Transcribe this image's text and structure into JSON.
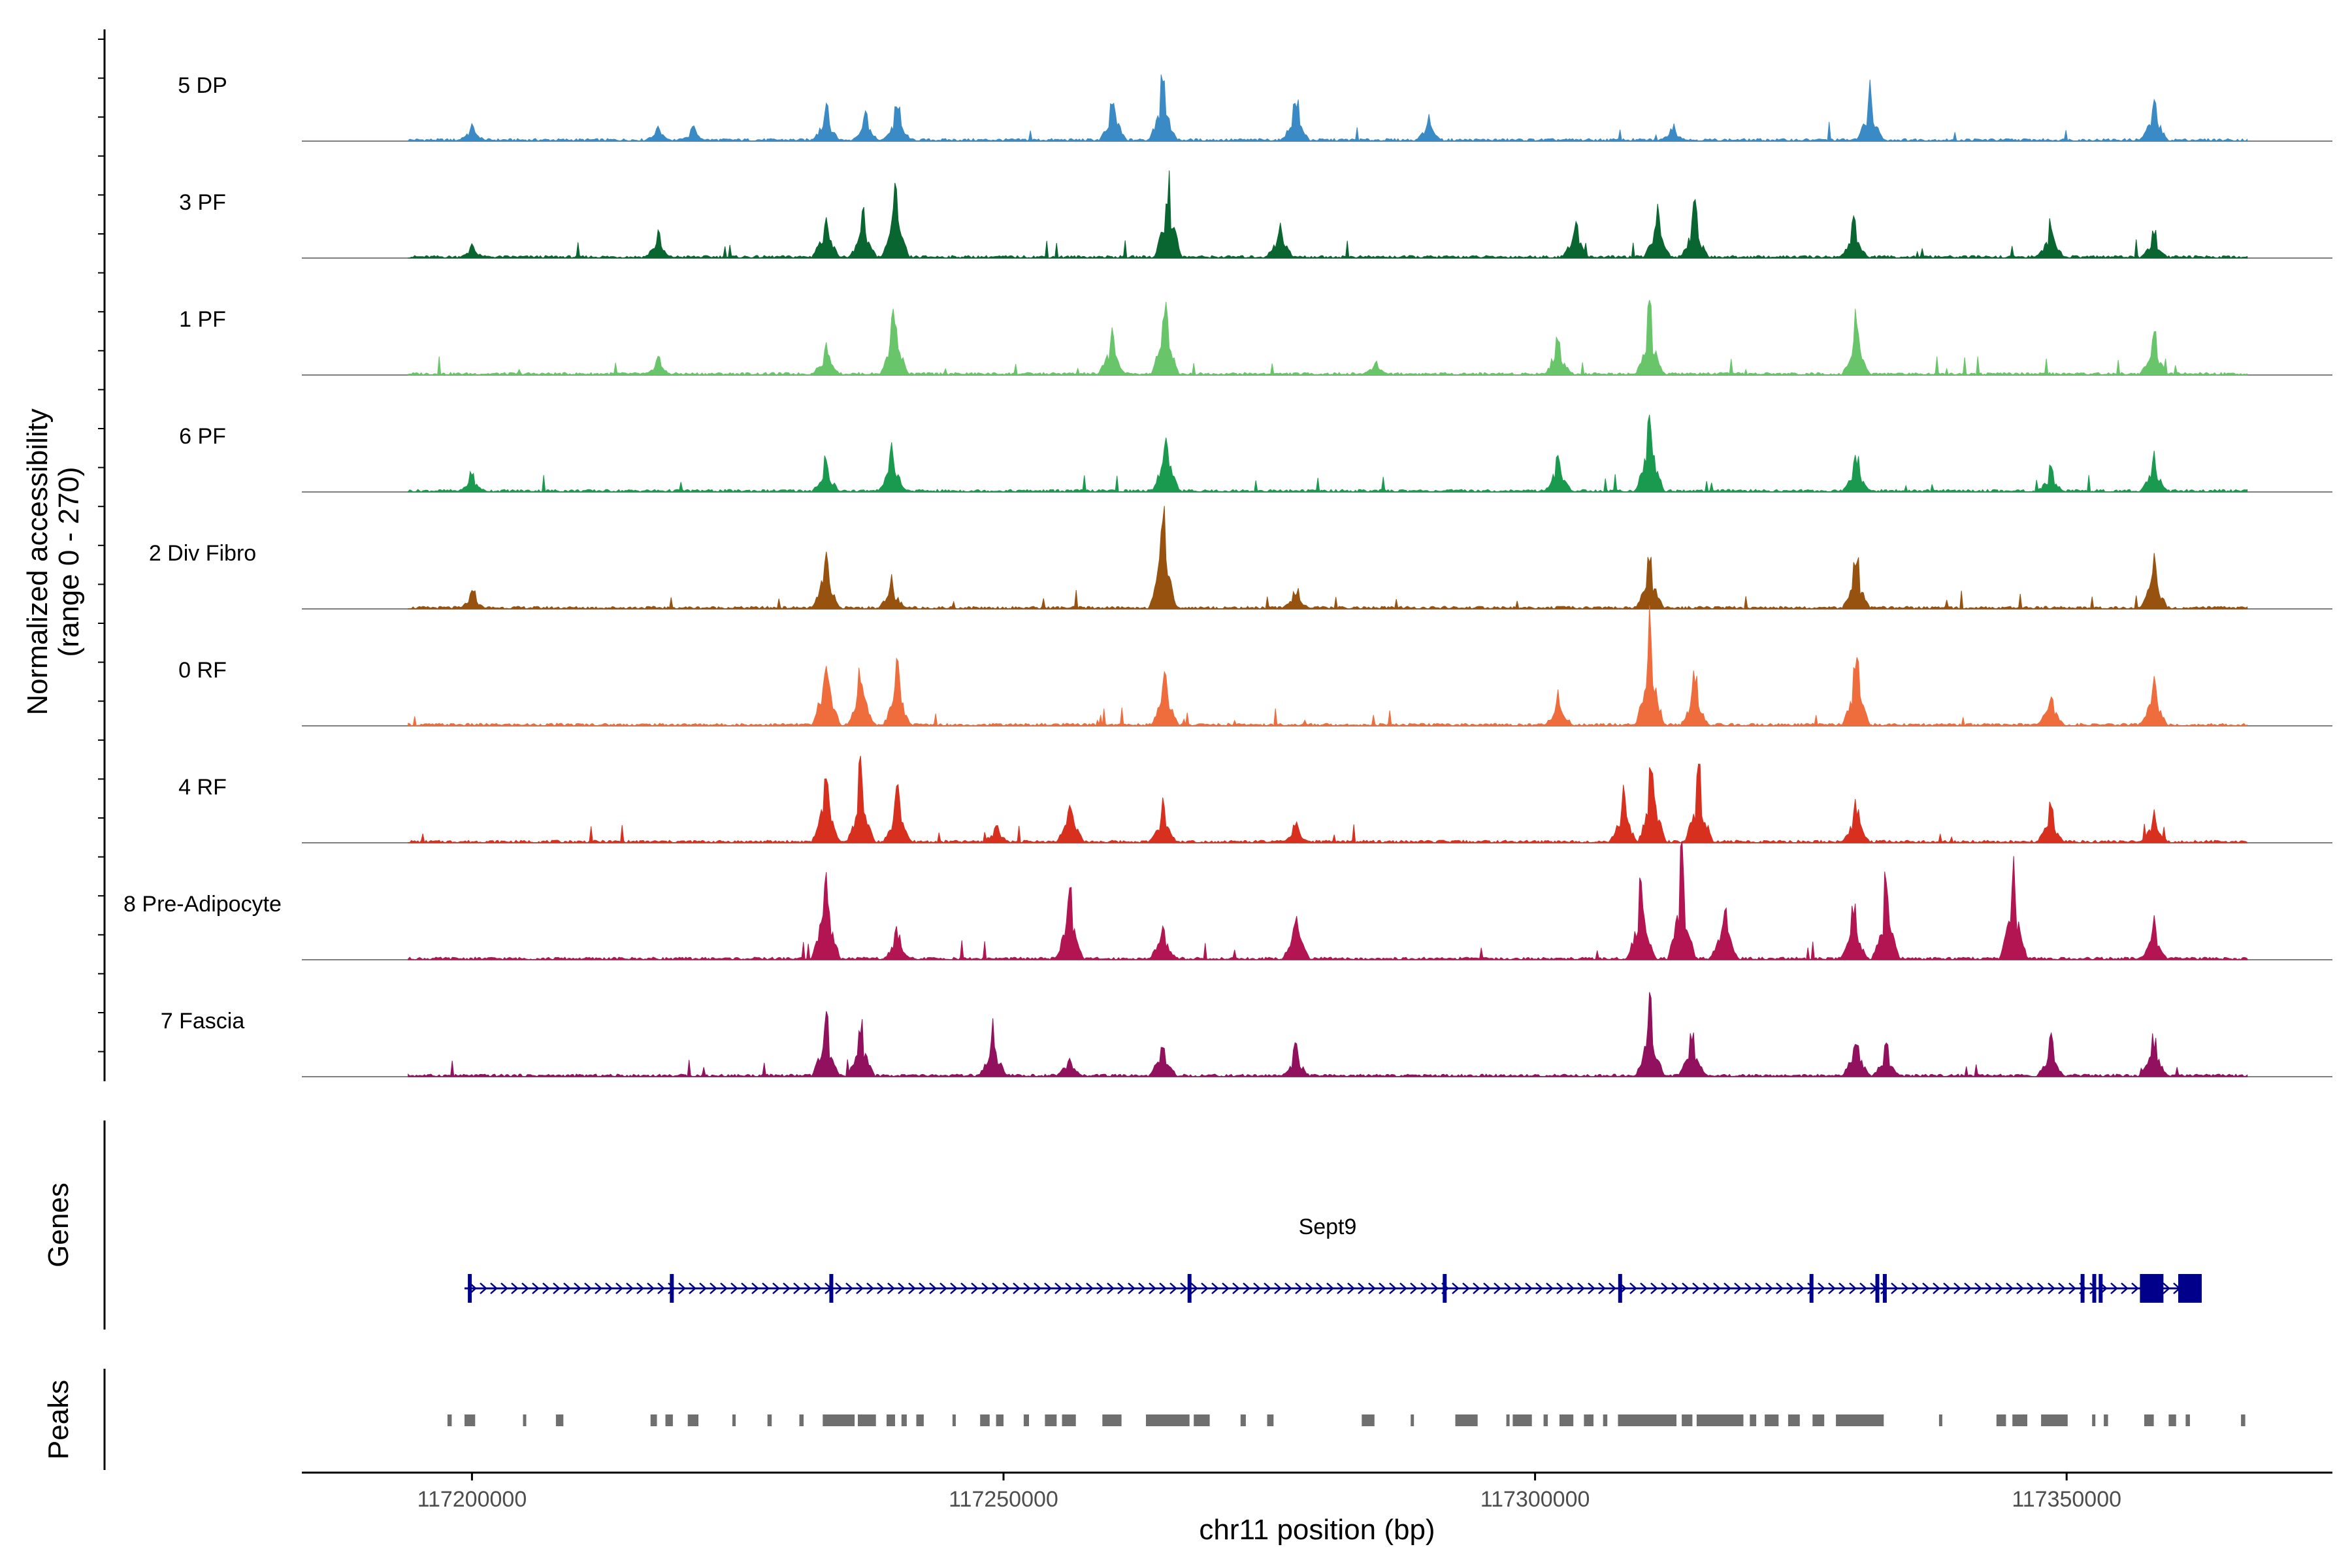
{
  "chart_data": {
    "type": "area",
    "title": "",
    "ylabel_line1": "Normalized accessibility",
    "ylabel_line2": "(range 0 - 270)",
    "y_range": [
      0,
      270
    ],
    "xlabel": "chr11 position (bp)",
    "x_range": [
      117184000,
      117375000
    ],
    "x_ticks": [
      117200000,
      117250000,
      117300000,
      117350000
    ],
    "x_tick_labels": [
      "117200000",
      "117250000",
      "117300000",
      "117350000"
    ],
    "tracks": [
      {
        "name": "5 DP",
        "color": "#3a8ac6",
        "peaks": [
          [
            117200000,
            10
          ],
          [
            117217500,
            9
          ],
          [
            117220800,
            8
          ],
          [
            117233300,
            20
          ],
          [
            117237000,
            16
          ],
          [
            117240000,
            22
          ],
          [
            117260300,
            26
          ],
          [
            117265000,
            38
          ],
          [
            117277500,
            26
          ],
          [
            117290000,
            15
          ],
          [
            117313000,
            9
          ],
          [
            117331500,
            30
          ],
          [
            117358200,
            29
          ]
        ]
      },
      {
        "name": "3 PF",
        "color": "#0a6630",
        "peaks": [
          [
            117200000,
            8
          ],
          [
            117217500,
            14
          ],
          [
            117233300,
            30
          ],
          [
            117236800,
            26
          ],
          [
            117239800,
            44
          ],
          [
            117265500,
            48
          ],
          [
            117276000,
            22
          ],
          [
            117303800,
            22
          ],
          [
            117311500,
            30
          ],
          [
            117315000,
            30
          ],
          [
            117330000,
            22
          ],
          [
            117348500,
            22
          ],
          [
            117358200,
            18
          ]
        ]
      },
      {
        "name": "1 PF",
        "color": "#69c56a",
        "peaks": [
          [
            117217500,
            10
          ],
          [
            117233300,
            18
          ],
          [
            117239700,
            44
          ],
          [
            117260200,
            26
          ],
          [
            117265200,
            44
          ],
          [
            117285000,
            8
          ],
          [
            117302200,
            22
          ],
          [
            117310800,
            42
          ],
          [
            117330200,
            34
          ],
          [
            117358200,
            25
          ]
        ]
      },
      {
        "name": "6 PF",
        "color": "#1a9a4e",
        "peaks": [
          [
            117200000,
            12
          ],
          [
            117233300,
            20
          ],
          [
            117239500,
            28
          ],
          [
            117265300,
            36
          ],
          [
            117302200,
            22
          ],
          [
            117310800,
            48
          ],
          [
            117330200,
            22
          ],
          [
            117348500,
            14
          ],
          [
            117358200,
            22
          ]
        ]
      },
      {
        "name": "2 Div Fibro",
        "color": "#96520e",
        "peaks": [
          [
            117200000,
            10
          ],
          [
            117233300,
            38
          ],
          [
            117239500,
            18
          ],
          [
            117265000,
            60
          ],
          [
            117277500,
            12
          ],
          [
            117310800,
            32
          ],
          [
            117330200,
            30
          ],
          [
            117358200,
            30
          ]
        ]
      },
      {
        "name": "0 RF",
        "color": "#ef6c3c",
        "peaks": [
          [
            117233300,
            48
          ],
          [
            117236600,
            36
          ],
          [
            117240000,
            34
          ],
          [
            117265200,
            32
          ],
          [
            117302200,
            18
          ],
          [
            117310800,
            62
          ],
          [
            117315000,
            30
          ],
          [
            117330200,
            38
          ],
          [
            117348500,
            20
          ],
          [
            117358200,
            28
          ]
        ]
      },
      {
        "name": "4 RF",
        "color": "#d7301f",
        "peaks": [
          [
            117233300,
            46
          ],
          [
            117236600,
            46
          ],
          [
            117240000,
            30
          ],
          [
            117249300,
            12
          ],
          [
            117256300,
            26
          ],
          [
            117265000,
            22
          ],
          [
            117277500,
            12
          ],
          [
            117308300,
            30
          ],
          [
            117311000,
            46
          ],
          [
            117315400,
            46
          ],
          [
            117330200,
            24
          ],
          [
            117348500,
            22
          ],
          [
            117358200,
            20
          ]
        ]
      },
      {
        "name": "8 Pre-Adipocyte",
        "color": "#b31552",
        "peaks": [
          [
            117233300,
            56
          ],
          [
            117240000,
            18
          ],
          [
            117256200,
            42
          ],
          [
            117265000,
            22
          ],
          [
            117277500,
            28
          ],
          [
            117310000,
            48
          ],
          [
            117313800,
            60
          ],
          [
            117317800,
            34
          ],
          [
            117330000,
            32
          ],
          [
            117333000,
            46
          ],
          [
            117345000,
            52
          ],
          [
            117358200,
            22
          ]
        ]
      },
      {
        "name": "7 Fascia",
        "color": "#91115e",
        "peaks": [
          [
            117233300,
            36
          ],
          [
            117236600,
            32
          ],
          [
            117249000,
            28
          ],
          [
            117256200,
            14
          ],
          [
            117265000,
            24
          ],
          [
            117277500,
            18
          ],
          [
            117310800,
            46
          ],
          [
            117314800,
            28
          ],
          [
            117330200,
            26
          ],
          [
            117333000,
            18
          ],
          [
            117348500,
            22
          ],
          [
            117358200,
            24
          ]
        ]
      }
    ],
    "genes_label": "Genes",
    "gene": {
      "name": "Sept9",
      "start": 117199300,
      "end": 117362500,
      "color": "#00008b",
      "exons": [
        117199800,
        117218800,
        117233800,
        117267500,
        117291500,
        117308000,
        117326000,
        117332200,
        117332900,
        117351500,
        117352600,
        117353200,
        117358000,
        117361600
      ]
    },
    "peaks_label": "Peaks",
    "peak_color": "#6f6f6f",
    "peak_regions": [
      [
        117197700,
        117198100
      ],
      [
        117199300,
        117200300
      ],
      [
        117204800,
        117205000
      ],
      [
        117207900,
        117208600
      ],
      [
        117216800,
        117217400
      ],
      [
        117218200,
        117218900
      ],
      [
        117220300,
        117221300
      ],
      [
        117224500,
        117224800
      ],
      [
        117227800,
        117228200
      ],
      [
        117230800,
        117231200
      ],
      [
        117233000,
        117236000
      ],
      [
        117236300,
        117238000
      ],
      [
        117239000,
        117239800
      ],
      [
        117240400,
        117240900
      ],
      [
        117241800,
        117242500
      ],
      [
        117245200,
        117245500
      ],
      [
        117247800,
        117248700
      ],
      [
        117249300,
        117250000
      ],
      [
        117251900,
        117252400
      ],
      [
        117253900,
        117255000
      ],
      [
        117255500,
        117256800
      ],
      [
        117259300,
        117261100
      ],
      [
        117263400,
        117267500
      ],
      [
        117267900,
        117269400
      ],
      [
        117272300,
        117272800
      ],
      [
        117274800,
        117275400
      ],
      [
        117283700,
        117284900
      ],
      [
        117288300,
        117288600
      ],
      [
        117292500,
        117294600
      ],
      [
        117297300,
        117297600
      ],
      [
        117297900,
        117299700
      ],
      [
        117300800,
        117301200
      ],
      [
        117302300,
        117303600
      ],
      [
        117304600,
        117305500
      ],
      [
        117306400,
        117306800
      ],
      [
        117307800,
        117313300
      ],
      [
        117313800,
        117314800
      ],
      [
        117315200,
        117319600
      ],
      [
        117320200,
        117320800
      ],
      [
        117321600,
        117322900
      ],
      [
        117323800,
        117324900
      ],
      [
        117326100,
        117327200
      ],
      [
        117328300,
        117332800
      ],
      [
        117338000,
        117338300
      ],
      [
        117343400,
        117344300
      ],
      [
        117344900,
        117346300
      ],
      [
        117347600,
        117350100
      ],
      [
        117352400,
        117352700
      ],
      [
        117353500,
        117353900
      ],
      [
        117357300,
        117358200
      ],
      [
        117359600,
        117360300
      ],
      [
        117361200,
        117361600
      ],
      [
        117366400,
        117366800
      ]
    ]
  }
}
